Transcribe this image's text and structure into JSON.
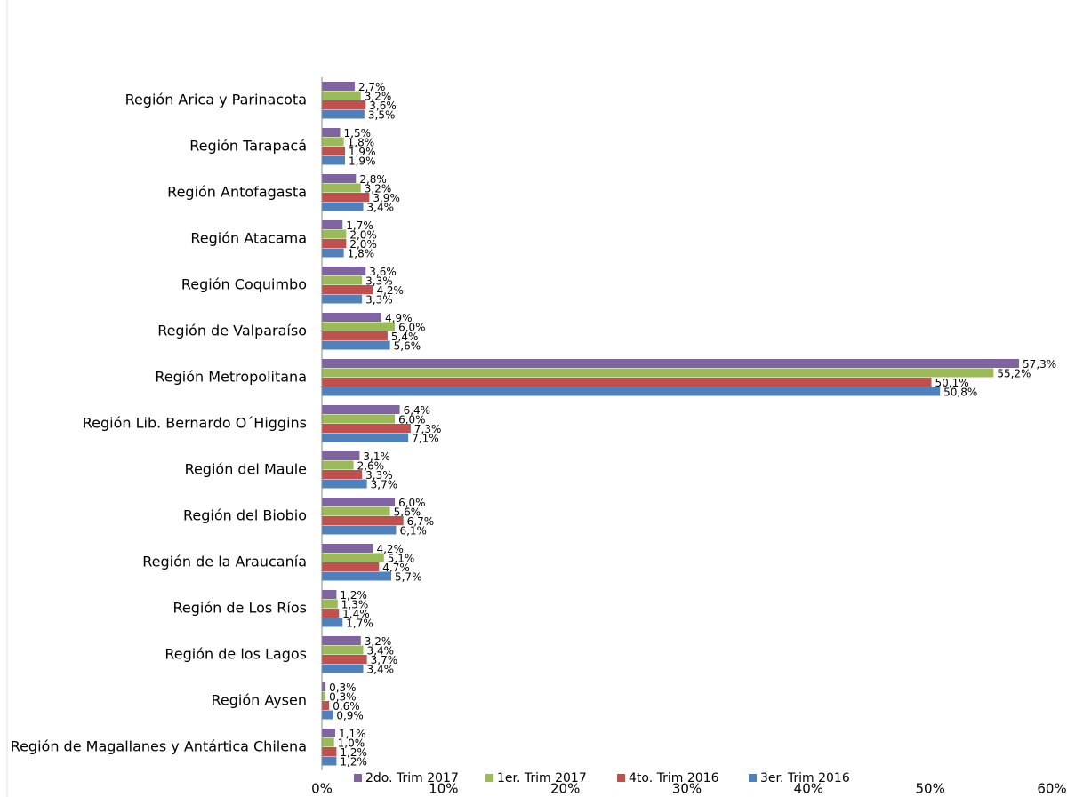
{
  "chart_data": {
    "type": "bar",
    "orientation": "horizontal",
    "legend": "bottom",
    "categories": [
      "Región Arica y Parinacota",
      "Región Tarapacá",
      "Región Antofagasta",
      "Región Atacama",
      "Región Coquimbo",
      "Región de Valparaíso",
      "Región Metropolitana",
      "Región Lib. Bernardo O´Higgins",
      "Región del Maule",
      "Región del Biobio",
      "Región de la Araucanía",
      "Región de Los Ríos",
      "Región de los Lagos",
      "Región Aysen",
      "Región de Magallanes y Antártica Chilena"
    ],
    "series": [
      {
        "name": "2do. Trim 2017",
        "color": "#8064a2",
        "values": [
          2.7,
          1.5,
          2.8,
          1.7,
          3.6,
          4.9,
          57.3,
          6.4,
          3.1,
          6.0,
          4.2,
          1.2,
          3.2,
          0.3,
          1.1
        ],
        "value_labels": [
          "2,7%",
          "1,5%",
          "2,8%",
          "1,7%",
          "3,6%",
          "4,9%",
          "57,3%",
          "6,4%",
          "3,1%",
          "6,0%",
          "4,2%",
          "1,2%",
          "3,2%",
          "0,3%",
          "1,1%"
        ]
      },
      {
        "name": "1er. Trim 2017",
        "color": "#9bbb59",
        "values": [
          3.2,
          1.8,
          3.2,
          2.0,
          3.3,
          6.0,
          55.2,
          6.0,
          2.6,
          5.6,
          5.1,
          1.3,
          3.4,
          0.3,
          1.0
        ],
        "value_labels": [
          "3,2%",
          "1,8%",
          "3,2%",
          "2,0%",
          "3,3%",
          "6,0%",
          "55,2%",
          "6,0%",
          "2,6%",
          "5,6%",
          "5,1%",
          "1,3%",
          "3,4%",
          "0,3%",
          "1,0%"
        ]
      },
      {
        "name": "4to. Trim 2016",
        "color": "#c0504d",
        "values": [
          3.6,
          1.9,
          3.9,
          2.0,
          4.2,
          5.4,
          50.1,
          7.3,
          3.3,
          6.7,
          4.7,
          1.4,
          3.7,
          0.6,
          1.2
        ],
        "value_labels": [
          "3,6%",
          "1,9%",
          "3,9%",
          "2,0%",
          "4,2%",
          "5,4%",
          "50,1%",
          "7,3%",
          "3,3%",
          "6,7%",
          "4,7%",
          "1,4%",
          "3,7%",
          "0,6%",
          "1,2%"
        ]
      },
      {
        "name": "3er. Trim 2016",
        "color": "#4f81bd",
        "values": [
          3.5,
          1.9,
          3.4,
          1.8,
          3.3,
          5.6,
          50.8,
          7.1,
          3.7,
          6.1,
          5.7,
          1.7,
          3.4,
          0.9,
          1.2
        ],
        "value_labels": [
          "3,5%",
          "1,9%",
          "3,4%",
          "1,8%",
          "3,3%",
          "5,6%",
          "50,8%",
          "7,1%",
          "3,7%",
          "6,1%",
          "5,7%",
          "1,7%",
          "3,4%",
          "0,9%",
          "1,2%"
        ]
      }
    ],
    "xlim": [
      0,
      60
    ],
    "xticks": [
      {
        "value": 0,
        "label": "0%"
      },
      {
        "value": 10,
        "label": "10%"
      },
      {
        "value": 20,
        "label": "20%"
      },
      {
        "value": 30,
        "label": "30%"
      },
      {
        "value": 40,
        "label": "40%"
      },
      {
        "value": 50,
        "label": "50%"
      },
      {
        "value": 60,
        "label": "60%"
      }
    ]
  }
}
